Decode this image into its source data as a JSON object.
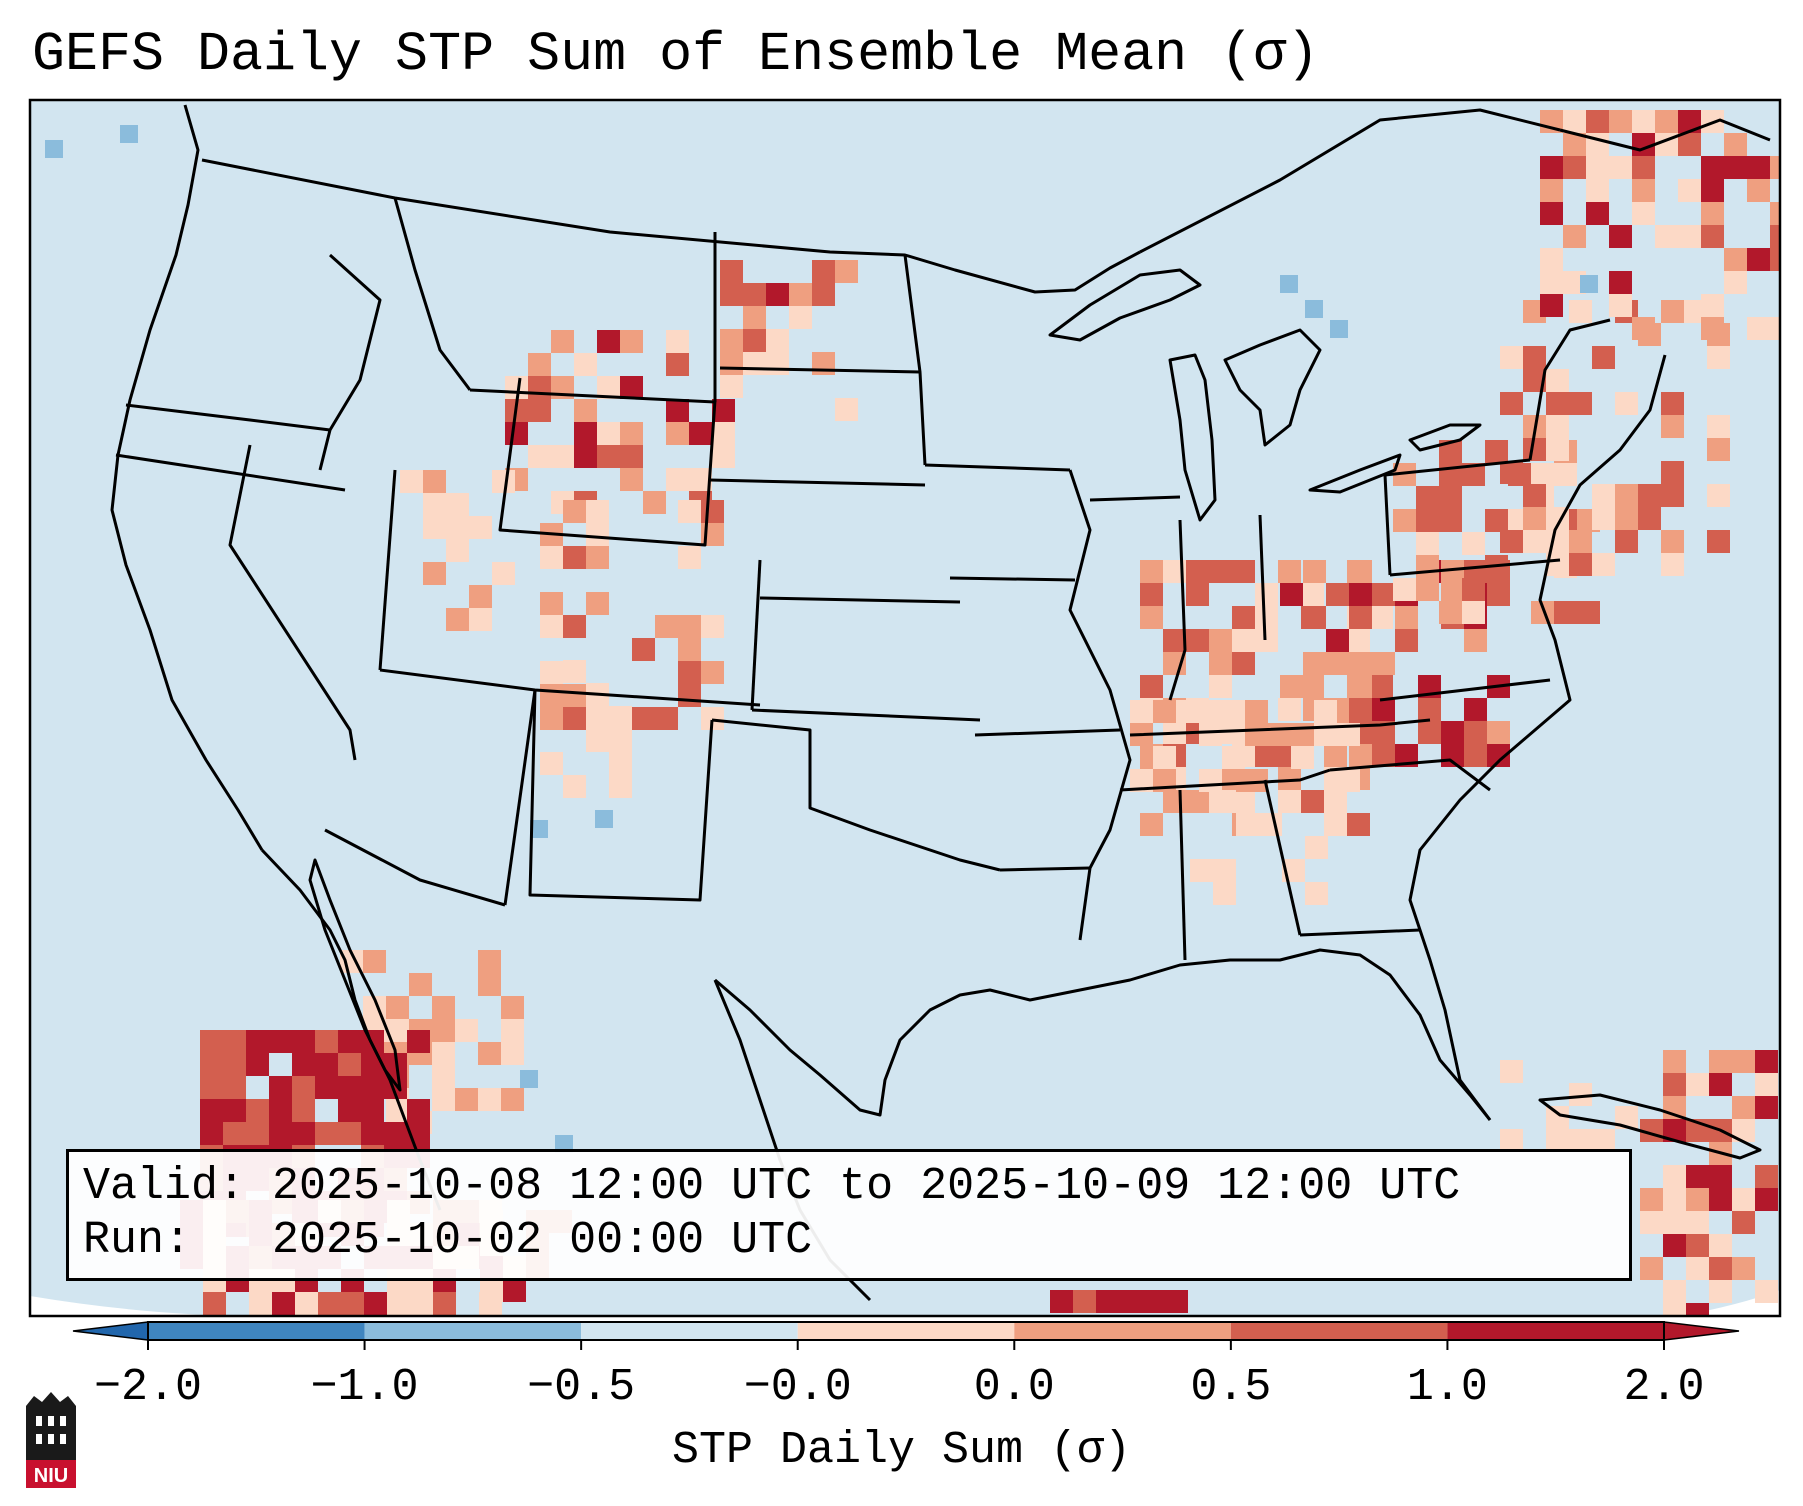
{
  "title": "GEFS Daily STP Sum of Ensemble Mean (σ)",
  "info": {
    "valid_label": "Valid:",
    "valid_value": "2025-10-08 12:00 UTC to 2025-10-09 12:00 UTC",
    "run_label": "Run:",
    "run_value": "2025-10-02 00:00 UTC"
  },
  "colorbar": {
    "label": "STP Daily Sum (σ)",
    "ticks": [
      "−2.0",
      "−1.0",
      "−0.5",
      "−0.0",
      "0.0",
      "0.5",
      "1.0",
      "2.0"
    ],
    "colors": [
      "#3f85bf",
      "#8bbcdc",
      "#d2e5f0",
      "#f7f7f7",
      "#fcd9c6",
      "#ef9f80",
      "#d35f4f",
      "#b2182b"
    ],
    "under_color": "#2166ac",
    "over_color": "#b2182b"
  },
  "map": {
    "background_color": "#d2e5f0",
    "regions": [
      {
        "name": "Ohio Valley and Appalachians",
        "intensity": "high"
      },
      {
        "name": "Central Rockies and Northern Plains",
        "intensity": "moderate"
      },
      {
        "name": "Northwest Mexico and Gulf of California",
        "intensity": "high"
      },
      {
        "name": "Northeast and Southeastern Canada",
        "intensity": "moderate"
      },
      {
        "name": "Caribbean",
        "intensity": "moderate"
      }
    ]
  },
  "logo": {
    "text": "NIU",
    "color": "#c8102e"
  }
}
